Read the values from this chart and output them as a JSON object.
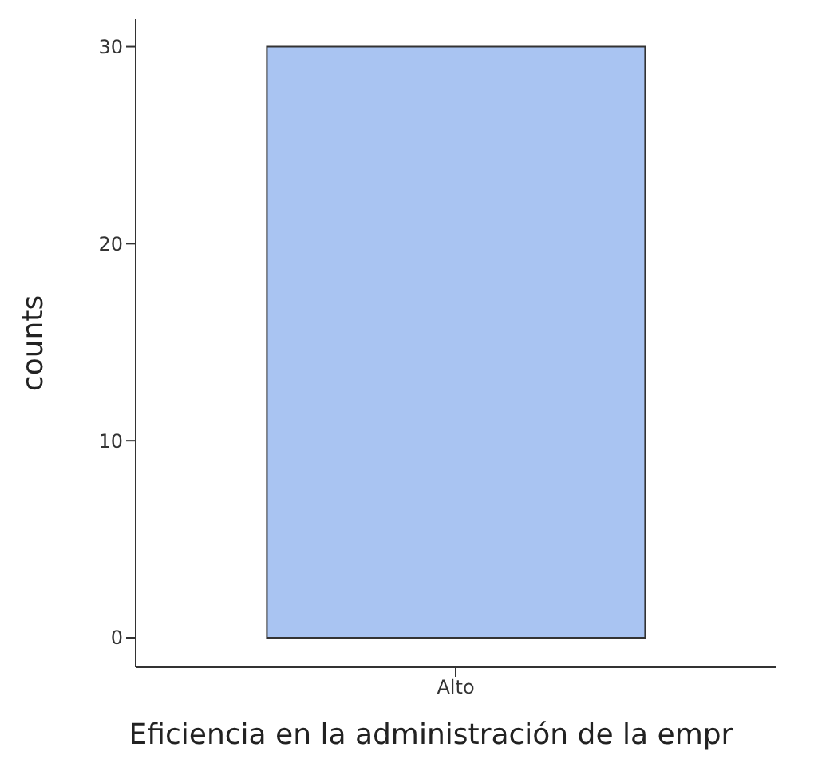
{
  "chart_data": {
    "type": "bar",
    "xlabel": "Eficiencia en la administración de la empr",
    "ylabel": "counts",
    "categories": [
      "Alto"
    ],
    "series": [
      {
        "color": "#a9c4f2",
        "values": [
          30
        ]
      }
    ],
    "ylim": [
      -1.5,
      31.4
    ],
    "yticks": [
      0,
      10,
      20,
      30
    ],
    "grid": false
  }
}
